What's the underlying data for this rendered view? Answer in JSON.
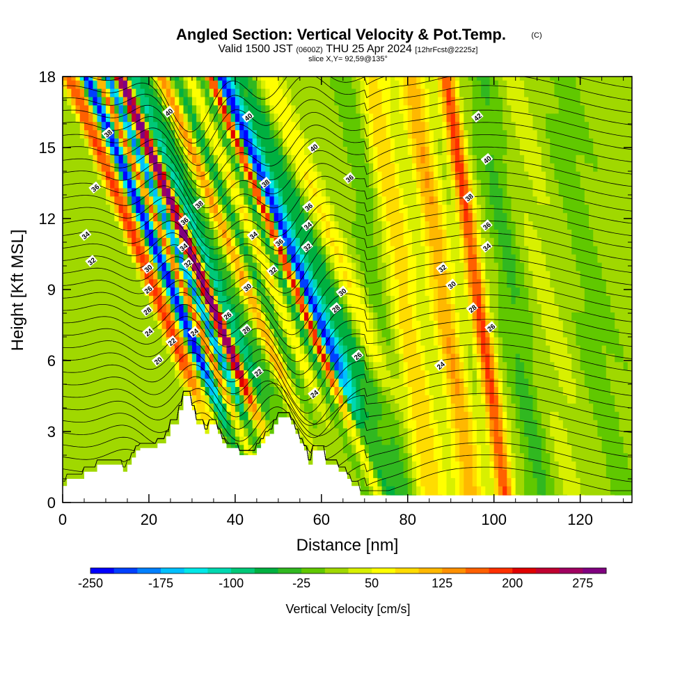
{
  "chart_data": {
    "type": "heatmap",
    "title": "Angled Section: Vertical Velocity & Pot.Temp.",
    "title_unit": "(C)",
    "subtitle": {
      "part1": "Valid 1500 JST",
      "part2": "(0600Z)",
      "part3": "THU 25 Apr 2024",
      "part4": "[12hrFcst@2225z]"
    },
    "slice_label": "slice X,Y= 92,59@135°",
    "xlabel": "Distance [nm]",
    "ylabel": "Height [Kft MSL]",
    "xlim": [
      0,
      132
    ],
    "ylim": [
      0,
      18
    ],
    "x_ticks": [
      0,
      20,
      40,
      60,
      80,
      100,
      120
    ],
    "y_ticks": [
      0,
      3,
      6,
      9,
      12,
      15,
      18
    ],
    "colorbar": {
      "title": "Vertical Velocity [cm/s]",
      "min": -250,
      "max": 300,
      "step": 25,
      "tick_labels": [
        -250,
        -175,
        -100,
        -25,
        50,
        125,
        200,
        275
      ],
      "colors": [
        "#0000ff",
        "#0040ff",
        "#0080ff",
        "#00c0ff",
        "#00e8e8",
        "#00d8b0",
        "#00c878",
        "#00b040",
        "#30b820",
        "#60c800",
        "#a0d800",
        "#d8f000",
        "#ffff00",
        "#ffdc00",
        "#ffb800",
        "#ff9000",
        "#ff6000",
        "#ff3000",
        "#e00000",
        "#c00030",
        "#a00060",
        "#800080"
      ]
    },
    "velocity_features": [
      {
        "x": 21,
        "w": 1.6,
        "v": 160
      },
      {
        "x": 23,
        "w": 1.2,
        "v": 90
      },
      {
        "x": 25,
        "w": 1.4,
        "v": -220
      },
      {
        "x": 26.5,
        "w": 1.2,
        "v": -140
      },
      {
        "x": 28,
        "w": 1.5,
        "v": 200
      },
      {
        "x": 30,
        "w": 1.2,
        "v": -200
      },
      {
        "x": 31.5,
        "w": 1.2,
        "v": -120
      },
      {
        "x": 32.5,
        "w": 1.3,
        "v": 260
      },
      {
        "x": 33.8,
        "w": 1.0,
        "v": 180
      },
      {
        "x": 36,
        "w": 1.6,
        "v": -100
      },
      {
        "x": 39,
        "w": 2.0,
        "v": -60
      },
      {
        "x": 43,
        "w": 1.8,
        "v": 130
      },
      {
        "x": 46,
        "w": 2.0,
        "v": -80
      },
      {
        "x": 49,
        "w": 2.2,
        "v": 70
      },
      {
        "x": 52,
        "w": 1.6,
        "v": -90
      },
      {
        "x": 54.3,
        "w": 1.4,
        "v": 260
      },
      {
        "x": 56,
        "w": 1.4,
        "v": -230
      },
      {
        "x": 58,
        "w": 1.8,
        "v": -140
      },
      {
        "x": 62,
        "w": 2.5,
        "v": -70
      },
      {
        "x": 67,
        "w": 3.0,
        "v": 60
      },
      {
        "x": 73,
        "w": 3.0,
        "v": -30
      },
      {
        "x": 79,
        "w": 3.5,
        "v": 80
      },
      {
        "x": 88,
        "w": 3.0,
        "v": 110
      },
      {
        "x": 96,
        "w": 2.0,
        "v": 170
      },
      {
        "x": 104,
        "w": 3.0,
        "v": -40
      },
      {
        "x": 112,
        "w": 4.0,
        "v": 20
      },
      {
        "x": 122,
        "w": 4.0,
        "v": -20
      }
    ],
    "terrain": [
      [
        0,
        0.7
      ],
      [
        1,
        1.0
      ],
      [
        5,
        1.3
      ],
      [
        8,
        1.6
      ],
      [
        12,
        1.6
      ],
      [
        14,
        1.3
      ],
      [
        15,
        1.6
      ],
      [
        16,
        1.9
      ],
      [
        17,
        2.2
      ],
      [
        18,
        2.3
      ],
      [
        21,
        2.3
      ],
      [
        22,
        2.5
      ],
      [
        24,
        2.8
      ],
      [
        25,
        3.3
      ],
      [
        27,
        3.9
      ],
      [
        28,
        4.5
      ],
      [
        29,
        4.5
      ],
      [
        30,
        3.9
      ],
      [
        31,
        3.3
      ],
      [
        33,
        2.9
      ],
      [
        34,
        3.3
      ],
      [
        35,
        3.3
      ],
      [
        36,
        2.9
      ],
      [
        37,
        2.5
      ],
      [
        38,
        2.3
      ],
      [
        40,
        2.3
      ],
      [
        41,
        2.0
      ],
      [
        44,
        2.0
      ],
      [
        45,
        2.3
      ],
      [
        46,
        2.5
      ],
      [
        47,
        2.8
      ],
      [
        48,
        2.9
      ],
      [
        49,
        3.3
      ],
      [
        50,
        3.6
      ],
      [
        52,
        3.6
      ],
      [
        53,
        3.3
      ],
      [
        54,
        2.9
      ],
      [
        55,
        2.5
      ],
      [
        56,
        2.2
      ],
      [
        57,
        1.6
      ],
      [
        58,
        2.2
      ],
      [
        60,
        2.2
      ],
      [
        61,
        1.6
      ],
      [
        62,
        1.6
      ],
      [
        64,
        1.3
      ],
      [
        66,
        1.0
      ],
      [
        67,
        0.7
      ],
      [
        68,
        0.7
      ],
      [
        69,
        0.3
      ],
      [
        132,
        0.3
      ]
    ],
    "contour_labels": [
      {
        "x": 10.5,
        "y": 15.6,
        "text": "38"
      },
      {
        "x": 24.6,
        "y": 16.5,
        "text": "40"
      },
      {
        "x": 43,
        "y": 16.3,
        "text": "40"
      },
      {
        "x": 58.2,
        "y": 15.0,
        "text": "40"
      },
      {
        "x": 96.2,
        "y": 16.3,
        "text": "42"
      },
      {
        "x": 98.4,
        "y": 14.5,
        "text": "40"
      },
      {
        "x": 7.5,
        "y": 13.3,
        "text": "36"
      },
      {
        "x": 31.6,
        "y": 12.6,
        "text": "38"
      },
      {
        "x": 47,
        "y": 13.5,
        "text": "38"
      },
      {
        "x": 66.5,
        "y": 13.7,
        "text": "36"
      },
      {
        "x": 57,
        "y": 12.5,
        "text": "36"
      },
      {
        "x": 94.2,
        "y": 12.9,
        "text": "38"
      },
      {
        "x": 5.3,
        "y": 11.3,
        "text": "34"
      },
      {
        "x": 28.2,
        "y": 11.9,
        "text": "36"
      },
      {
        "x": 44.2,
        "y": 11.3,
        "text": "34"
      },
      {
        "x": 56.8,
        "y": 11.7,
        "text": "34"
      },
      {
        "x": 98.3,
        "y": 11.7,
        "text": "36"
      },
      {
        "x": 50.2,
        "y": 11.0,
        "text": "36"
      },
      {
        "x": 6.7,
        "y": 10.2,
        "text": "32"
      },
      {
        "x": 28.0,
        "y": 10.8,
        "text": "34"
      },
      {
        "x": 29.0,
        "y": 10.1,
        "text": "32"
      },
      {
        "x": 56.7,
        "y": 10.8,
        "text": "32"
      },
      {
        "x": 98.3,
        "y": 10.8,
        "text": "34"
      },
      {
        "x": 48.7,
        "y": 9.8,
        "text": "32"
      },
      {
        "x": 88,
        "y": 9.9,
        "text": "32"
      },
      {
        "x": 19.8,
        "y": 9.9,
        "text": "30"
      },
      {
        "x": 19.8,
        "y": 9.0,
        "text": "26"
      },
      {
        "x": 42.8,
        "y": 9.1,
        "text": "30"
      },
      {
        "x": 64.8,
        "y": 8.9,
        "text": "30"
      },
      {
        "x": 90.2,
        "y": 9.2,
        "text": "30"
      },
      {
        "x": 19.6,
        "y": 8.1,
        "text": "28"
      },
      {
        "x": 63.3,
        "y": 8.2,
        "text": "28"
      },
      {
        "x": 95,
        "y": 8.2,
        "text": "28"
      },
      {
        "x": 38.2,
        "y": 7.9,
        "text": "26"
      },
      {
        "x": 19.9,
        "y": 7.2,
        "text": "24"
      },
      {
        "x": 30.5,
        "y": 7.2,
        "text": "24"
      },
      {
        "x": 42.5,
        "y": 7.3,
        "text": "28"
      },
      {
        "x": 99.3,
        "y": 7.4,
        "text": "26"
      },
      {
        "x": 25.3,
        "y": 6.8,
        "text": "22"
      },
      {
        "x": 68.4,
        "y": 6.2,
        "text": "26"
      },
      {
        "x": 22.1,
        "y": 6.0,
        "text": "20"
      },
      {
        "x": 87.6,
        "y": 5.8,
        "text": "24"
      },
      {
        "x": 45.3,
        "y": 5.5,
        "text": "22"
      },
      {
        "x": 58.3,
        "y": 4.6,
        "text": "24"
      }
    ]
  }
}
